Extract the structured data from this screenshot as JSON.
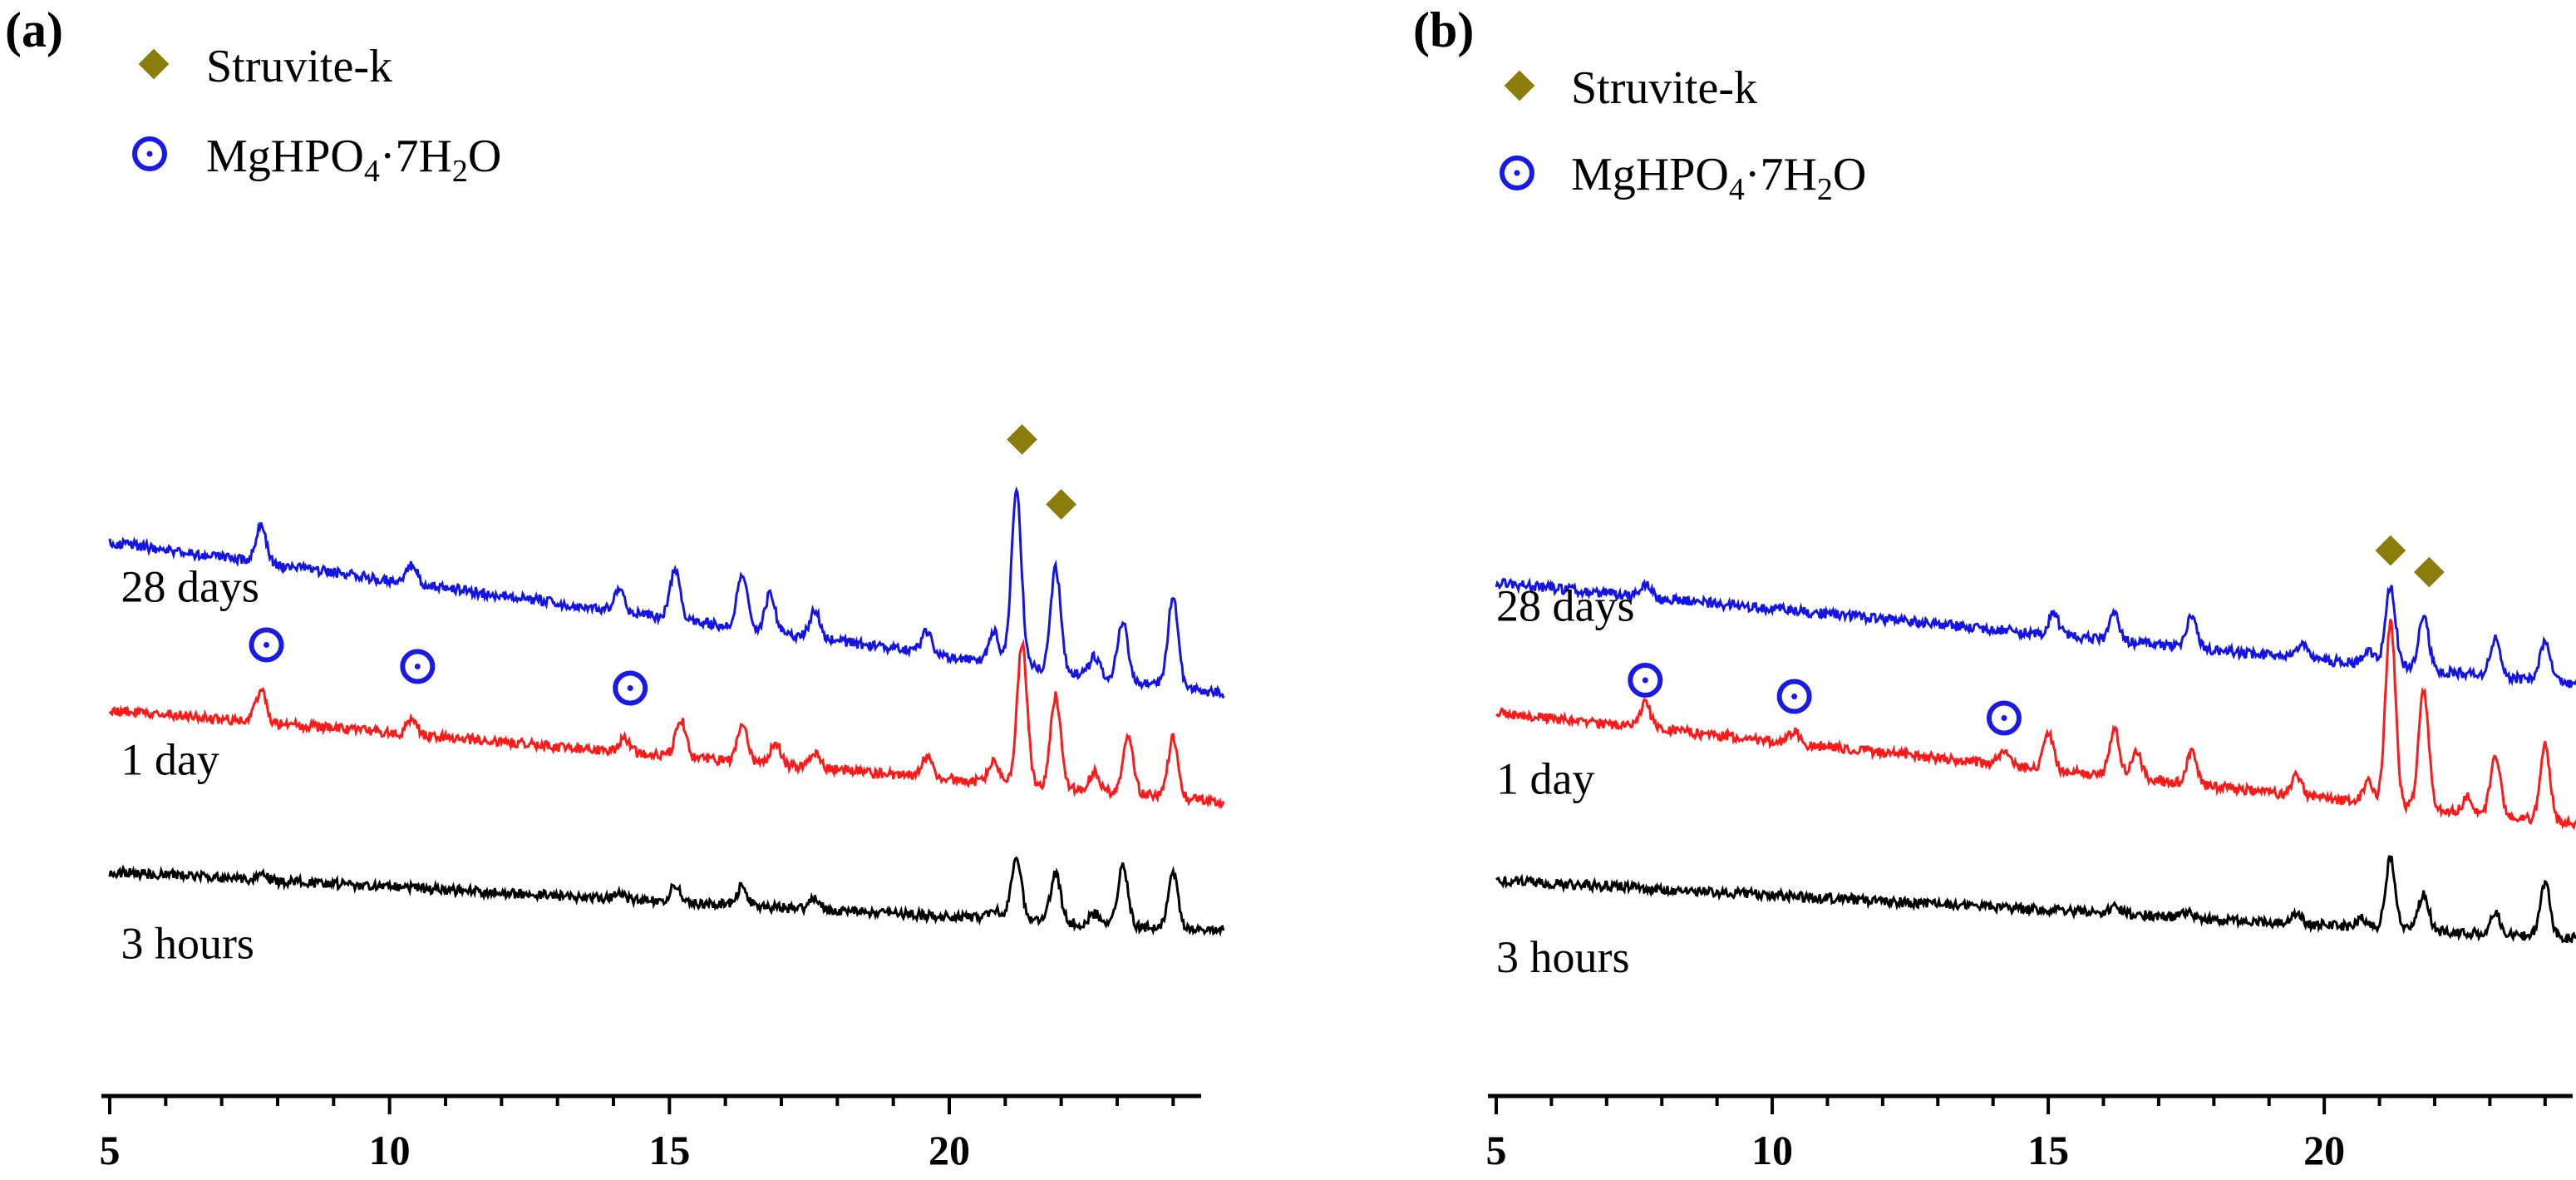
{
  "colors": {
    "struvite": "#8b7d0b",
    "mghpo4": "#1a1ae6",
    "d28": "#1414e6",
    "d1": "#ff1a1a",
    "h3": "#000000"
  },
  "legend": {
    "struvite_label": "Struvite-k",
    "mghpo4_label": {
      "base1": "MgHPO",
      "sub1": "4",
      "base2": "·7H",
      "sub2": "2",
      "base3": "O"
    }
  },
  "chart_data": [
    {
      "panel": "(a)",
      "type": "line",
      "xlabel": "",
      "ylabel": "",
      "xlim": [
        5,
        25
      ],
      "xticks": [
        "5",
        "10",
        "15",
        "20"
      ],
      "series": [
        {
          "name": "28 days",
          "color": "blue",
          "baseline": [
            3.6,
            2.2
          ],
          "peaks": [
            [
              7.7,
              0.35
            ],
            [
              10.4,
              0.18
            ],
            [
              14.1,
              0.2
            ],
            [
              15.1,
              0.45
            ],
            [
              16.3,
              0.5
            ],
            [
              16.8,
              0.35
            ],
            [
              17.6,
              0.25
            ],
            [
              19.6,
              0.2
            ],
            [
              20.8,
              0.3
            ],
            [
              21.2,
              1.6
            ],
            [
              21.9,
              0.95
            ],
            [
              22.6,
              0.18
            ],
            [
              23.1,
              0.55
            ],
            [
              24.0,
              0.85
            ]
          ]
        },
        {
          "name": "1 day",
          "color": "red",
          "baseline": [
            2.05,
            1.2
          ],
          "peaks": [
            [
              7.7,
              0.3
            ],
            [
              10.4,
              0.15
            ],
            [
              14.2,
              0.12
            ],
            [
              15.2,
              0.35
            ],
            [
              16.3,
              0.35
            ],
            [
              16.9,
              0.2
            ],
            [
              17.6,
              0.15
            ],
            [
              19.6,
              0.18
            ],
            [
              20.8,
              0.2
            ],
            [
              21.3,
              1.3
            ],
            [
              21.9,
              0.85
            ],
            [
              22.6,
              0.18
            ],
            [
              23.2,
              0.55
            ],
            [
              24.0,
              0.55
            ]
          ]
        },
        {
          "name": "3 hours",
          "color": "black",
          "baseline": [
            0.55,
            0.0
          ],
          "peaks": [
            [
              7.7,
              0.06
            ],
            [
              14.1,
              0.06
            ],
            [
              15.1,
              0.15
            ],
            [
              16.3,
              0.18
            ],
            [
              17.6,
              0.1
            ],
            [
              20.8,
              0.1
            ],
            [
              21.2,
              0.6
            ],
            [
              21.9,
              0.45
            ],
            [
              22.6,
              0.1
            ],
            [
              23.1,
              0.55
            ],
            [
              24.0,
              0.5
            ]
          ]
        }
      ],
      "markers": [
        {
          "type": "struvite",
          "x": 21.3,
          "y": 4.55
        },
        {
          "type": "struvite",
          "x": 22.0,
          "y": 3.95
        },
        {
          "type": "mghpo4",
          "x": 7.8,
          "y": 2.65
        },
        {
          "type": "mghpo4",
          "x": 10.5,
          "y": 2.45
        },
        {
          "type": "mghpo4",
          "x": 14.3,
          "y": 2.25
        }
      ],
      "labels": [
        {
          "text": "28 days",
          "x": 5.2,
          "y": 3.05
        },
        {
          "text": "1 day",
          "x": 5.2,
          "y": 1.45
        },
        {
          "text": "3 hours",
          "x": 5.2,
          "y": -0.25
        }
      ]
    },
    {
      "panel": "(b)",
      "type": "line",
      "xlabel": "",
      "ylabel": "",
      "xlim": [
        5,
        25
      ],
      "xticks": [
        "5",
        "10",
        "15",
        "20"
      ],
      "series": [
        {
          "name": "28 days",
          "color": "blue",
          "baseline": [
            3.3,
            2.35
          ],
          "peaks": [
            [
              7.7,
              0.12
            ],
            [
              15.1,
              0.2
            ],
            [
              16.2,
              0.25
            ],
            [
              17.6,
              0.3
            ],
            [
              19.6,
              0.15
            ],
            [
              20.8,
              0.15
            ],
            [
              21.2,
              0.75
            ],
            [
              21.8,
              0.5
            ],
            [
              23.1,
              0.35
            ],
            [
              24.0,
              0.35
            ]
          ]
        },
        {
          "name": "1 day",
          "color": "red",
          "baseline": [
            2.1,
            1.05
          ],
          "peaks": [
            [
              7.7,
              0.25
            ],
            [
              10.4,
              0.12
            ],
            [
              14.2,
              0.15
            ],
            [
              15.0,
              0.35
            ],
            [
              16.2,
              0.45
            ],
            [
              16.6,
              0.25
            ],
            [
              17.6,
              0.3
            ],
            [
              19.5,
              0.2
            ],
            [
              20.8,
              0.2
            ],
            [
              21.2,
              1.7
            ],
            [
              21.8,
              1.1
            ],
            [
              22.6,
              0.15
            ],
            [
              23.1,
              0.55
            ],
            [
              24.0,
              0.7
            ]
          ]
        },
        {
          "name": "3 hours",
          "color": "black",
          "baseline": [
            0.55,
            0.0
          ],
          "peaks": [
            [
              16.2,
              0.08
            ],
            [
              17.5,
              0.05
            ],
            [
              19.5,
              0.1
            ],
            [
              20.7,
              0.08
            ],
            [
              21.2,
              0.65
            ],
            [
              21.8,
              0.35
            ],
            [
              23.1,
              0.2
            ],
            [
              24.0,
              0.5
            ]
          ]
        }
      ],
      "markers": [
        {
          "type": "struvite",
          "x": 21.2,
          "y": 3.6
        },
        {
          "type": "struvite",
          "x": 21.9,
          "y": 3.4
        },
        {
          "type": "mghpo4",
          "x": 7.7,
          "y": 2.4
        },
        {
          "type": "mghpo4",
          "x": 10.4,
          "y": 2.25
        },
        {
          "type": "mghpo4",
          "x": 14.2,
          "y": 2.05
        }
      ],
      "labels": [
        {
          "text": "28 days",
          "x": 5.0,
          "y": 2.95
        },
        {
          "text": "1 day",
          "x": 5.0,
          "y": 1.35
        },
        {
          "text": "3 hours",
          "x": 5.0,
          "y": -0.3
        }
      ]
    }
  ]
}
